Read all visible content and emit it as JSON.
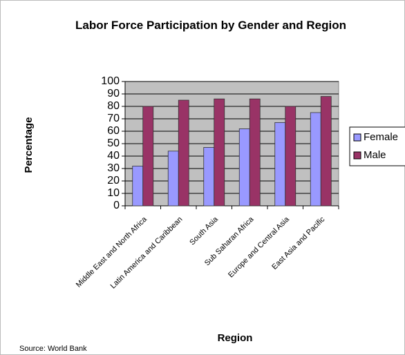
{
  "chart_data": {
    "type": "bar",
    "title": "Labor Force Participation by Gender and Region",
    "x_label": "Region",
    "y_label": "Percentage",
    "source": "Source:  World Bank",
    "categories": [
      "Middle East and North Africa",
      "Latin America and Caribbean",
      "South Asia",
      "Sub Saharan Africa",
      "Europe and Central Asia",
      "East Asia and Pacific"
    ],
    "series": [
      {
        "name": "Female",
        "color": "#9999ff",
        "values": [
          32,
          44,
          47,
          62,
          67,
          75
        ]
      },
      {
        "name": "Male",
        "color": "#993366",
        "values": [
          80,
          85,
          86,
          86,
          80,
          88
        ]
      }
    ],
    "ylim": [
      0,
      100
    ],
    "yticks": [
      0,
      10,
      20,
      30,
      40,
      50,
      60,
      70,
      80,
      90,
      100
    ],
    "grid": true,
    "legend": "right"
  }
}
